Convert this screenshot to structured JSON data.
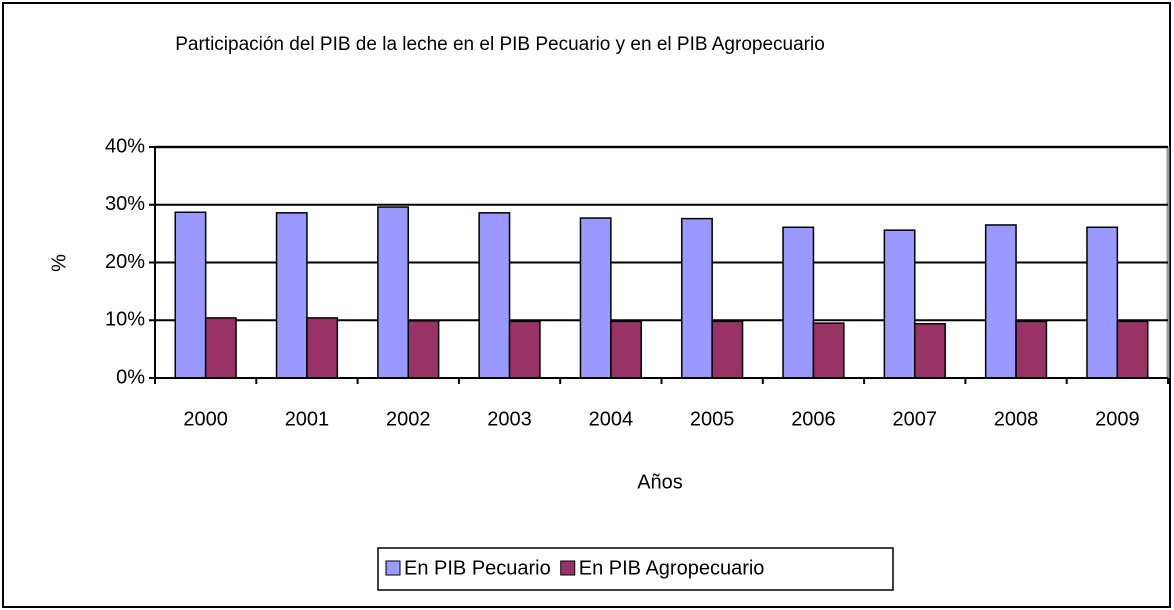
{
  "chart_data": {
    "type": "bar",
    "title": "Participación del PIB de la leche en el PIB Pecuario y en el PIB Agropecuario",
    "x_label": "Años",
    "y_label": "%",
    "categories": [
      "2000",
      "2001",
      "2002",
      "2003",
      "2004",
      "2005",
      "2006",
      "2007",
      "2008",
      "2009"
    ],
    "series": [
      {
        "name": "En PIB Pecuario",
        "color": "#9999ff",
        "values": [
          28.7,
          28.6,
          29.6,
          28.6,
          27.7,
          27.6,
          26.1,
          25.6,
          26.5,
          26.1
        ]
      },
      {
        "name": "En PIB Agropecuario",
        "color": "#993366",
        "values": [
          10.4,
          10.4,
          9.9,
          9.8,
          9.8,
          9.8,
          9.5,
          9.4,
          9.8,
          9.8
        ]
      }
    ],
    "ylim": [
      0,
      40
    ],
    "yticks": [
      {
        "value": 0,
        "label": "0%"
      },
      {
        "value": 10,
        "label": "10%"
      },
      {
        "value": 20,
        "label": "20%"
      },
      {
        "value": 30,
        "label": "30%"
      },
      {
        "value": 40,
        "label": "40%"
      }
    ],
    "grid": true,
    "legend": "bottom"
  }
}
